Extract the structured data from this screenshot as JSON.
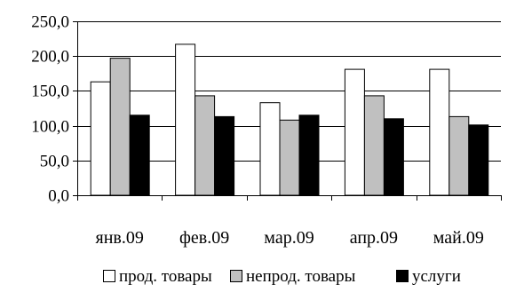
{
  "chart_data": {
    "type": "bar",
    "title": "",
    "xlabel": "",
    "ylabel": "",
    "categories": [
      "янв.09",
      "фев.09",
      "мар.09",
      "апр.09",
      "май.09"
    ],
    "series": [
      {
        "name": "прод. товары",
        "values": [
          163.0,
          217.0,
          133.0,
          181.0,
          181.0
        ],
        "color": "#ffffff"
      },
      {
        "name": "непрод. товары",
        "values": [
          197.0,
          143.0,
          108.0,
          143.0,
          113.0
        ],
        "color": "#c0c0c0"
      },
      {
        "name": "услуги",
        "values": [
          115.0,
          113.0,
          115.0,
          110.0,
          101.0
        ],
        "color": "#000000"
      }
    ],
    "ylim": [
      0,
      250
    ],
    "yticks": [
      0,
      50,
      100,
      150,
      200,
      250
    ],
    "ytick_labels": [
      "0,0",
      "50,0",
      "100,0",
      "150,0",
      "200,0",
      "250,0"
    ],
    "grid": true,
    "legend_position": "bottom"
  }
}
